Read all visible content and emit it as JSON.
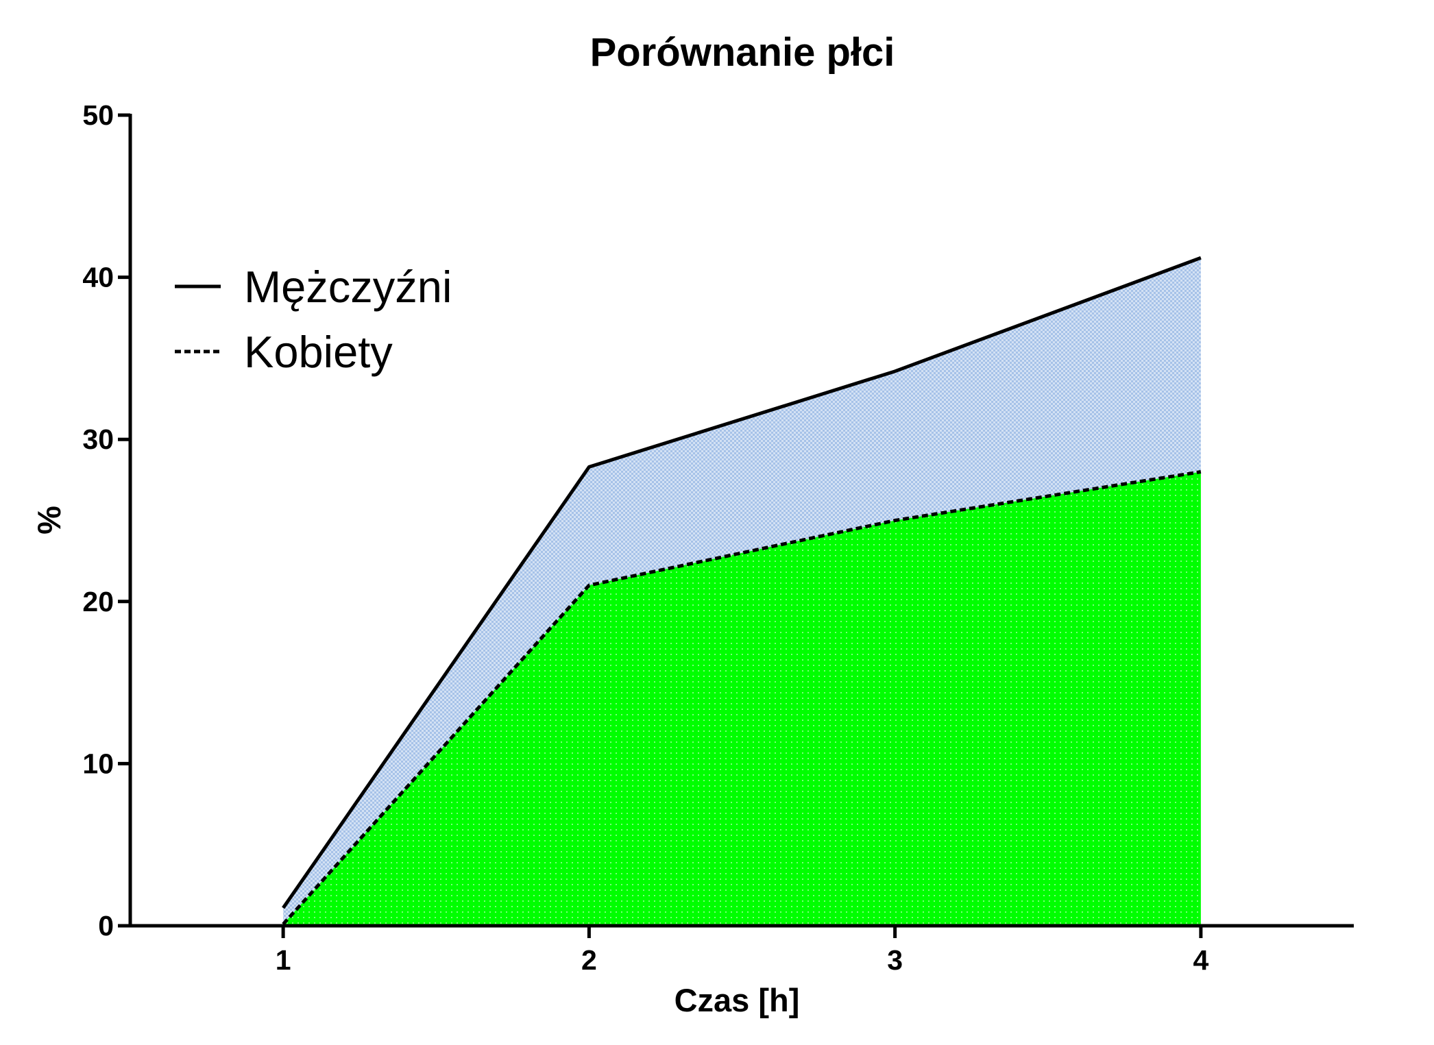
{
  "chart_data": {
    "type": "area",
    "title": "Porównanie płci",
    "xlabel": "Czas [h]",
    "ylabel": "%",
    "x": [
      1,
      2,
      3,
      4
    ],
    "xlim": [
      0.5,
      4.5
    ],
    "ylim": [
      0,
      50
    ],
    "xticks": [
      1,
      2,
      3,
      4
    ],
    "yticks": [
      0,
      10,
      20,
      30,
      40,
      50
    ],
    "grid": false,
    "legend_position": "top-left",
    "series": [
      {
        "name": "Mężczyźni",
        "values": [
          1.1,
          28.3,
          34.2,
          41.2
        ],
        "line_style": "solid",
        "fill_color": "#a6c2e8"
      },
      {
        "name": "Kobiety",
        "values": [
          0.1,
          21.0,
          25.0,
          28.0
        ],
        "line_style": "dashed",
        "fill_color": "#00ff00"
      }
    ]
  }
}
